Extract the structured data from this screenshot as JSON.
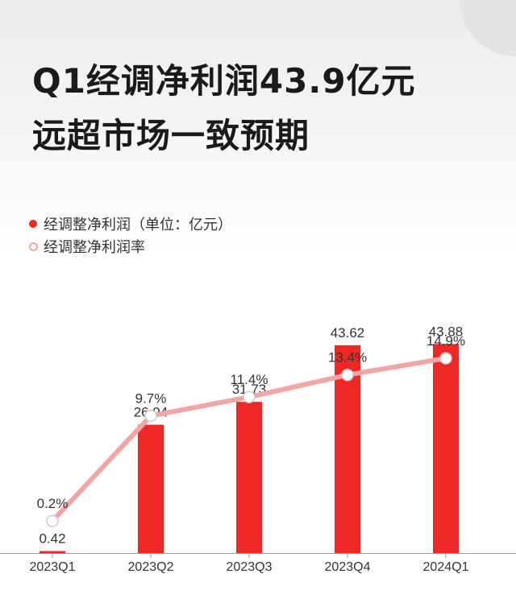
{
  "headline": {
    "line1": "Q1经调净利润43.9亿元",
    "line2": "远超市场一致预期"
  },
  "legend": {
    "bar_series": "经调整净利润（单位：亿元）",
    "line_series": "经调整净利润率"
  },
  "colors": {
    "bar": "#ee2727",
    "line": "#f2a6a3",
    "marker_fill": "#ffffff",
    "marker_stroke": "#cccccc",
    "text": "#333333",
    "axis": "#999999"
  },
  "chart_data": {
    "type": "bar",
    "categories": [
      "2023Q1",
      "2023Q2",
      "2023Q3",
      "2023Q4",
      "2024Q1"
    ],
    "series": [
      {
        "name": "经调整净利润（单位：亿元）",
        "type": "bar",
        "values": [
          0.42,
          26.94,
          31.73,
          43.62,
          43.88
        ],
        "labels": [
          "0.42",
          "26.94",
          "31.73",
          "43.62",
          "43.88"
        ]
      },
      {
        "name": "经调整净利润率",
        "type": "line",
        "values": [
          0.2,
          9.7,
          11.4,
          13.4,
          14.9
        ],
        "labels": [
          "0.2%",
          "9.7%",
          "11.4%",
          "13.4%",
          "14.9%"
        ]
      }
    ],
    "bar_ylim": [
      0,
      62
    ],
    "line_ylim": [
      -2.7,
      24
    ],
    "grid": false,
    "legend_position": "top-left"
  }
}
